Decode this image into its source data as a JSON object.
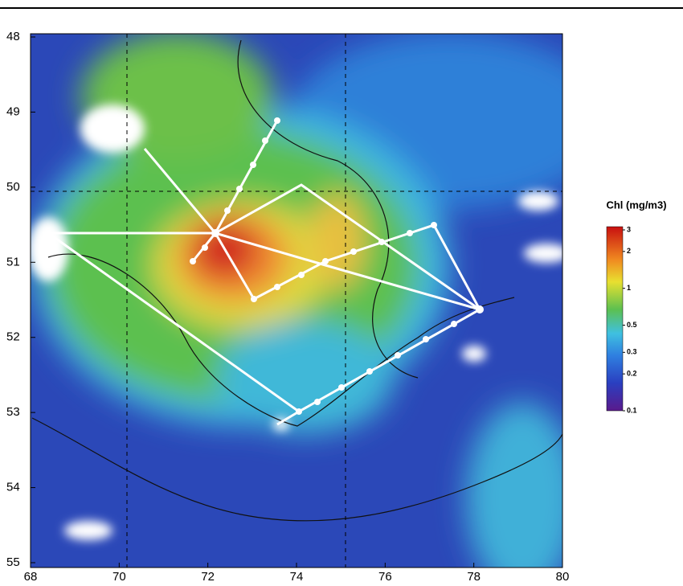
{
  "map": {
    "xlim": [
      68,
      80
    ],
    "ylim": [
      48,
      55
    ],
    "xticks": [
      68,
      70,
      72,
      74,
      76,
      78,
      80
    ],
    "yticks": [
      48,
      49,
      50,
      51,
      52,
      53,
      54,
      55
    ],
    "colorbar": {
      "title": "Chl (mg/m3)",
      "log": true,
      "lim": [
        0.1,
        3
      ],
      "ticks": [
        3,
        2,
        1,
        0.5,
        0.3,
        0.2,
        0.1
      ]
    }
  }
}
